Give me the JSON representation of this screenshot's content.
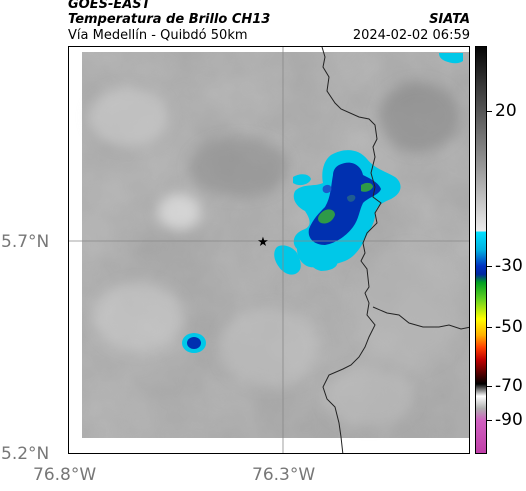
{
  "header": {
    "satellite": "GOES-EAST",
    "product": "Temperatura de Brillo CH13",
    "region": "Vía Medellín - Quibdó 50km",
    "agency": "SIATA",
    "datetime": "2024-02-02 06:59"
  },
  "map": {
    "latitude_labels": [
      "5.7°N",
      "5.2°N"
    ],
    "longitude_labels": [
      "76.8°W",
      "76.3°W"
    ],
    "marker": "star-icon",
    "colors": {
      "background_gray": "#a8a8a8",
      "cold_cloud_cyan": "#00c8e8",
      "deep_convection_blue": "#0030b0",
      "core_green": "#2e9a48",
      "boundary_line": "#222222"
    }
  },
  "colorbar": {
    "tick_labels": [
      "20",
      "-30",
      "-50",
      "-70",
      "-90"
    ]
  }
}
